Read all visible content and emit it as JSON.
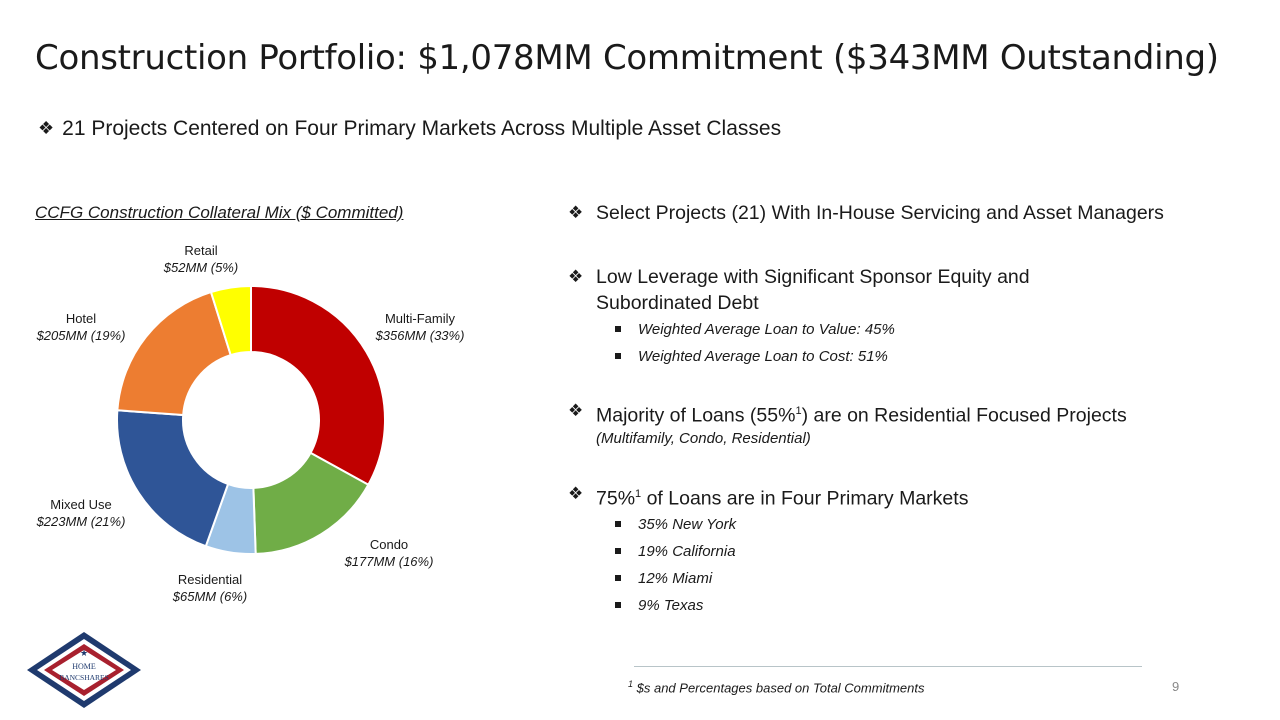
{
  "title": "Construction Portfolio: $1,078MM Commitment ($343MM Outstanding)",
  "subtitle": "21 Projects Centered on Four Primary Markets Across Multiple Asset Classes",
  "chart_title": "CCFG Construction Collateral Mix ($ Committed)",
  "chart_data": {
    "type": "pie",
    "title": "CCFG Construction Collateral Mix ($ Committed)",
    "donut": true,
    "units": "$MM",
    "slices": [
      {
        "name": "Multi-Family",
        "value": 356,
        "label": "$356MM (33%)",
        "color": "#C00000"
      },
      {
        "name": "Condo",
        "value": 177,
        "label": "$177MM (16%)",
        "color": "#70AD47"
      },
      {
        "name": "Residential",
        "value": 65,
        "label": "$65MM (6%)",
        "color": "#9DC3E6"
      },
      {
        "name": "Mixed Use",
        "value": 223,
        "label": "$223MM (21%)",
        "color": "#2F5597"
      },
      {
        "name": "Hotel",
        "value": 205,
        "label": "$205MM (19%)",
        "color": "#ED7D31"
      },
      {
        "name": "Retail",
        "value": 52,
        "label": "$52MM (5%)",
        "color": "#FFFF00"
      }
    ]
  },
  "bullets": {
    "b1": "Select Projects (21) With In-House Servicing and Asset Managers",
    "b2_line1": "Low Leverage with Significant Sponsor Equity and",
    "b2_line2": "Subordinated Debt",
    "b2_sub1": "Weighted Average Loan to Value: 45%",
    "b2_sub2": "Weighted Average Loan to Cost: 51%",
    "b3_pre": "Majority of Loans (55%",
    "b3_sup": "1",
    "b3_post": ") are on Residential Focused Projects",
    "b3_note": "(Multifamily, Condo, Residential)",
    "b4_pre": "75%",
    "b4_sup": "1",
    "b4_post": " of Loans are in Four Primary Markets",
    "b4_subs": [
      "35% New York",
      "19% California",
      "12% Miami",
      "9% Texas"
    ],
    "marker": "❖"
  },
  "footnote_sup": "1",
  "footnote": " $s and Percentages based on Total Commitments",
  "page_number": "9",
  "logo": {
    "line1": "HOME",
    "line2": "BANCSHARES",
    "colors": {
      "navy": "#1F3A6E",
      "red": "#A8202E"
    }
  }
}
